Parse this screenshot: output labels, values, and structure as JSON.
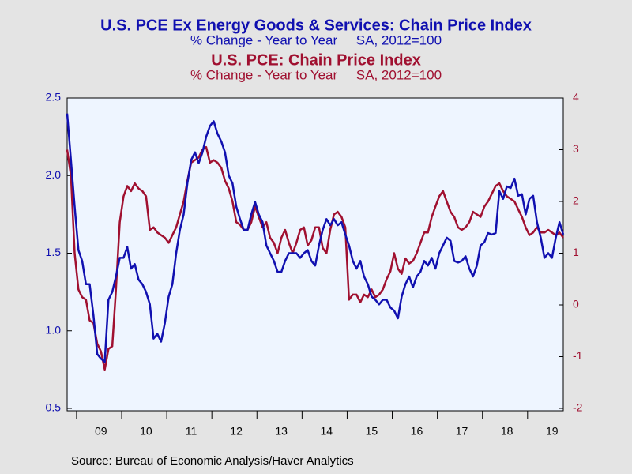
{
  "chart_data": {
    "type": "line",
    "series": [
      {
        "name": "U.S. PCE Ex Energy Goods & Services: Chain Price Index",
        "subtitle": "% Change - Year to Year     SA, 2012=100",
        "color": "#1010b0",
        "axis": "y",
        "values": [
          2.4,
          2.1,
          1.8,
          1.52,
          1.45,
          1.3,
          1.3,
          1.1,
          0.85,
          0.82,
          0.8,
          1.2,
          1.25,
          1.35,
          1.47,
          1.47,
          1.54,
          1.4,
          1.43,
          1.33,
          1.3,
          1.25,
          1.17,
          0.95,
          0.98,
          0.93,
          1.05,
          1.22,
          1.3,
          1.5,
          1.65,
          1.75,
          1.95,
          2.1,
          2.15,
          2.08,
          2.15,
          2.25,
          2.32,
          2.35,
          2.27,
          2.22,
          2.15,
          2.0,
          1.95,
          1.8,
          1.72,
          1.65,
          1.65,
          1.75,
          1.83,
          1.75,
          1.7,
          1.55,
          1.5,
          1.45,
          1.38,
          1.38,
          1.45,
          1.5,
          1.5,
          1.5,
          1.47,
          1.5,
          1.52,
          1.45,
          1.42,
          1.55,
          1.65,
          1.72,
          1.68,
          1.72,
          1.68,
          1.7,
          1.62,
          1.55,
          1.45,
          1.4,
          1.45,
          1.35,
          1.3,
          1.22,
          1.2,
          1.17,
          1.2,
          1.2,
          1.15,
          1.13,
          1.08,
          1.22,
          1.3,
          1.35,
          1.28,
          1.35,
          1.38,
          1.45,
          1.42,
          1.47,
          1.4,
          1.5,
          1.55,
          1.6,
          1.58,
          1.45,
          1.44,
          1.45,
          1.48,
          1.4,
          1.35,
          1.42,
          1.55,
          1.57,
          1.63,
          1.62,
          1.63,
          1.9,
          1.85,
          1.93,
          1.92,
          1.98,
          1.87,
          1.88,
          1.75,
          1.85,
          1.87,
          1.7,
          1.6,
          1.47,
          1.5,
          1.47,
          1.6,
          1.7,
          1.62
        ]
      },
      {
        "name": "U.S. PCE: Chain Price Index",
        "subtitle": "% Change - Year to Year     SA, 2012=100",
        "color": "#a01030",
        "axis": "y2",
        "values": [
          3.0,
          2.5,
          1.0,
          0.3,
          0.15,
          0.1,
          -0.3,
          -0.35,
          -0.75,
          -0.9,
          -1.25,
          -0.85,
          -0.8,
          0.3,
          1.6,
          2.1,
          2.3,
          2.2,
          2.35,
          2.25,
          2.2,
          2.1,
          1.45,
          1.5,
          1.4,
          1.35,
          1.3,
          1.2,
          1.35,
          1.5,
          1.75,
          2.0,
          2.4,
          2.75,
          2.8,
          2.85,
          3.0,
          3.05,
          2.75,
          2.8,
          2.75,
          2.65,
          2.4,
          2.25,
          2.0,
          1.6,
          1.55,
          1.45,
          1.45,
          1.6,
          1.9,
          1.7,
          1.5,
          1.6,
          1.3,
          1.2,
          1.0,
          1.3,
          1.45,
          1.2,
          1.0,
          1.2,
          1.45,
          1.5,
          1.15,
          1.25,
          1.5,
          1.5,
          1.1,
          1.0,
          1.45,
          1.75,
          1.8,
          1.7,
          1.5,
          0.1,
          0.2,
          0.2,
          0.05,
          0.2,
          0.15,
          0.3,
          0.15,
          0.2,
          0.3,
          0.5,
          0.65,
          1.0,
          0.7,
          0.6,
          0.9,
          0.8,
          0.85,
          1.0,
          1.2,
          1.4,
          1.4,
          1.7,
          1.9,
          2.1,
          2.2,
          2.0,
          1.8,
          1.7,
          1.5,
          1.45,
          1.5,
          1.6,
          1.8,
          1.75,
          1.7,
          1.9,
          2.0,
          2.15,
          2.3,
          2.35,
          2.2,
          2.1,
          2.05,
          2.0,
          1.85,
          1.7,
          1.5,
          1.35,
          1.4,
          1.5,
          1.4,
          1.4,
          1.45,
          1.4,
          1.35,
          1.4,
          1.3
        ]
      }
    ],
    "categories": [
      null,
      null,
      null,
      null,
      null,
      null,
      null,
      null,
      null,
      "09",
      null,
      null,
      null,
      null,
      null,
      null,
      null,
      null,
      null,
      null,
      null,
      "10",
      null,
      null,
      null,
      null,
      null,
      null,
      null,
      null,
      null,
      null,
      null,
      "11",
      null,
      null,
      null,
      null,
      null,
      null,
      null,
      null,
      null,
      null,
      null,
      "12",
      null,
      null,
      null,
      null,
      null,
      null,
      null,
      null,
      null,
      null,
      null,
      "13",
      null,
      null,
      null,
      null,
      null,
      null,
      null,
      null,
      null,
      null,
      null,
      "14",
      null,
      null,
      null,
      null,
      null,
      null,
      null,
      null,
      null,
      null,
      null,
      "15",
      null,
      null,
      null,
      null,
      null,
      null,
      null,
      null,
      null,
      null,
      null,
      "16",
      null,
      null,
      null,
      null,
      null,
      null,
      null,
      null,
      null,
      null,
      null,
      "17",
      null,
      null,
      null,
      null,
      null,
      null,
      null,
      null,
      null,
      null,
      null,
      "18",
      null,
      null,
      null,
      null,
      null,
      null,
      null,
      null,
      null,
      null,
      null,
      "19",
      null,
      null,
      null
    ],
    "ylim": [
      0.5,
      2.5
    ],
    "yticks": [
      0.5,
      1.0,
      1.5,
      2.0,
      2.5
    ],
    "y2lim": [
      -2,
      4
    ],
    "y2ticks": [
      -2,
      -1,
      0,
      1,
      2,
      3,
      4
    ],
    "source": "Source:  Bureau of Economic Analysis/Haver Analytics"
  }
}
